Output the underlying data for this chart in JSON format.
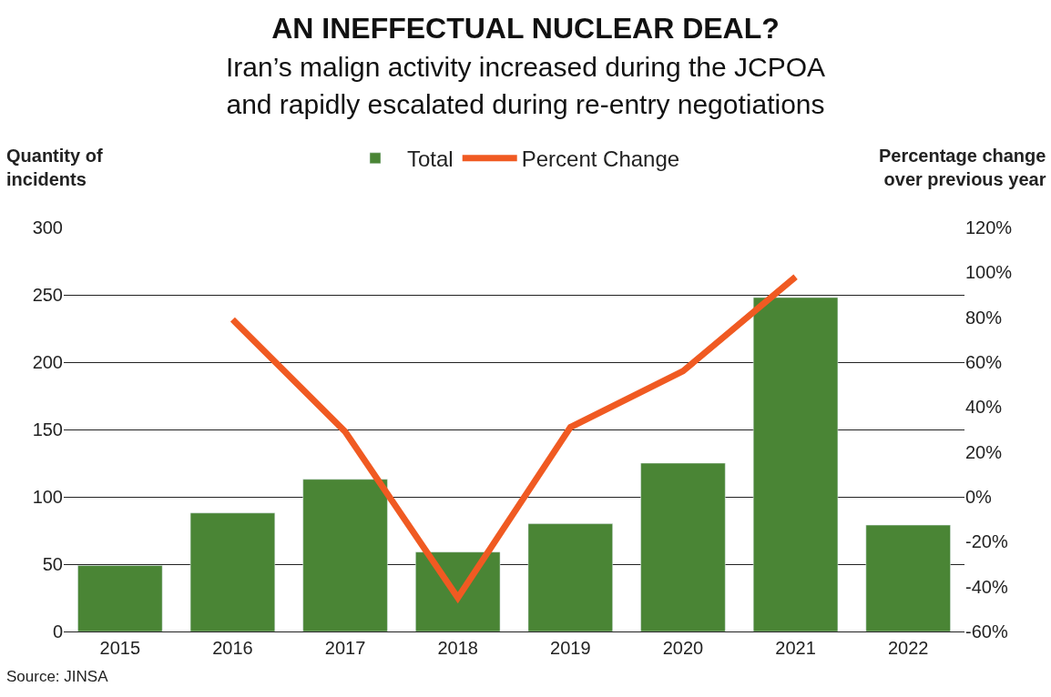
{
  "chart_data": {
    "type": "bar",
    "title": "AN INEFFECTUAL NUCLEAR DEAL?",
    "subtitle": "Iran’s malign activity increased during the JCPOA\nand rapidly escalated during re-entry negotiations",
    "ylabel": "Quantity of\nincidents",
    "y2label": "Percentage change\nover previous year",
    "categories": [
      "2015",
      "2016",
      "2017",
      "2018",
      "2019",
      "2020",
      "2021",
      "2022"
    ],
    "series": [
      {
        "name": "Total",
        "color": "#4a8535",
        "values": [
          49,
          88,
          113,
          59,
          80,
          125,
          248,
          79
        ]
      },
      {
        "name": "Percent Change",
        "type": "line",
        "axis": "y2",
        "color": "#f05a22",
        "values": [
          null,
          79,
          29,
          -45,
          31,
          56,
          98,
          null
        ]
      }
    ],
    "ylim": [
      0,
      300
    ],
    "yticks": [
      0,
      50,
      100,
      150,
      200,
      250,
      300
    ],
    "y2lim": [
      -60,
      120
    ],
    "y2ticks": [
      {
        "value": -60,
        "label": "-60%"
      },
      {
        "value": -40,
        "label": "-40%"
      },
      {
        "value": -20,
        "label": "-20%"
      },
      {
        "value": 0,
        "label": "0%"
      },
      {
        "value": 20,
        "label": "20%"
      },
      {
        "value": 40,
        "label": "40%"
      },
      {
        "value": 60,
        "label": "60%"
      },
      {
        "value": 80,
        "label": "80%"
      },
      {
        "value": 100,
        "label": "100%"
      },
      {
        "value": 120,
        "label": "120%"
      }
    ],
    "grid": "y",
    "legend": "top",
    "marker": "none",
    "line_style": "solid",
    "annotations": [
      "Source: JINSA"
    ]
  }
}
